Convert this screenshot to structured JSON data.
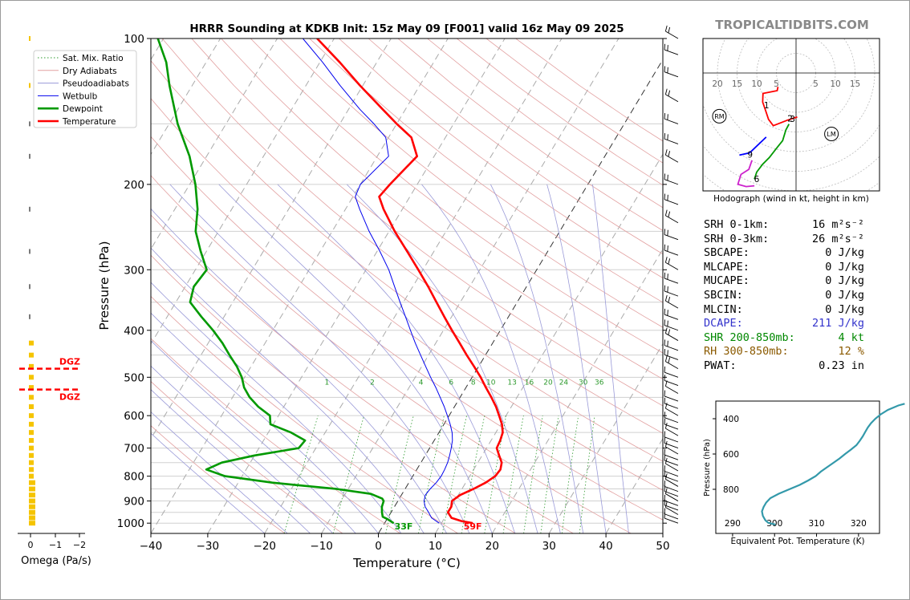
{
  "title": "HRRR Sounding at KDKB Init: 15z May 09 [F001] valid 16z May 09 2025",
  "watermark": "TROPICALTIDBITS.COM",
  "legend": [
    "Sat. Mix. Ratio",
    "Dry Adiabats",
    "Pseudoadiabats",
    "Wetbulb",
    "Dewpoint",
    "Temperature"
  ],
  "chart_data": [
    {
      "type": "line",
      "name": "skew-t",
      "xlabel": "Temperature (°C)",
      "ylabel": "Pressure (hPa)",
      "xlim": [
        -40,
        50
      ],
      "ylim": [
        1050,
        100
      ],
      "y_scale": "log",
      "x_ticks": [
        -40,
        -30,
        -20,
        -10,
        0,
        10,
        20,
        30,
        40,
        50
      ],
      "y_ticks": [
        100,
        200,
        300,
        400,
        500,
        600,
        700,
        800,
        900,
        1000
      ],
      "mixing_ratio_labels": [
        "1",
        "2",
        "4",
        "6",
        "8",
        "10",
        "13",
        "16",
        "20",
        "24",
        "30",
        "36"
      ],
      "surface_labels": {
        "dewpoint": "33F",
        "temperature": "59F"
      },
      "series": [
        {
          "name": "Temperature",
          "color": "#ff0000",
          "points": [
            [
              1000,
              15.5
            ],
            [
              990,
              13.3
            ],
            [
              975,
              11.2
            ],
            [
              950,
              10.0
            ],
            [
              925,
              10.0
            ],
            [
              900,
              9.5
            ],
            [
              875,
              10.3
            ],
            [
              850,
              12.0
            ],
            [
              825,
              13.5
            ],
            [
              800,
              14.5
            ],
            [
              775,
              14.7
            ],
            [
              750,
              14.2
            ],
            [
              725,
              13.0
            ],
            [
              700,
              11.8
            ],
            [
              675,
              11.6
            ],
            [
              650,
              11.2
            ],
            [
              625,
              10.2
            ],
            [
              600,
              8.8
            ],
            [
              575,
              7.3
            ],
            [
              550,
              5.5
            ],
            [
              525,
              3.5
            ],
            [
              500,
              1.5
            ],
            [
              475,
              -0.8
            ],
            [
              450,
              -3.3
            ],
            [
              425,
              -5.8
            ],
            [
              400,
              -8.5
            ],
            [
              375,
              -11.3
            ],
            [
              350,
              -14.2
            ],
            [
              325,
              -17.3
            ],
            [
              300,
              -20.8
            ],
            [
              275,
              -24.7
            ],
            [
              250,
              -29.0
            ],
            [
              225,
              -33.3
            ],
            [
              212,
              -35.4
            ],
            [
              200,
              -34.8
            ],
            [
              175,
              -33.0
            ],
            [
              160,
              -36.0
            ],
            [
              150,
              -40.0
            ],
            [
              140,
              -44.0
            ],
            [
              125,
              -50.5
            ],
            [
              112,
              -56.5
            ],
            [
              100,
              -63.0
            ]
          ]
        },
        {
          "name": "Dewpoint",
          "color": "#009900",
          "points": [
            [
              1000,
              1.6
            ],
            [
              980,
              0.0
            ],
            [
              970,
              -1.0
            ],
            [
              950,
              -1.6
            ],
            [
              925,
              -2.2
            ],
            [
              900,
              -2.5
            ],
            [
              890,
              -3.0
            ],
            [
              870,
              -5.5
            ],
            [
              850,
              -12.0
            ],
            [
              825,
              -24.0
            ],
            [
              800,
              -33.0
            ],
            [
              775,
              -37.0
            ],
            [
              750,
              -35.0
            ],
            [
              725,
              -30.0
            ],
            [
              700,
              -23.0
            ],
            [
              675,
              -22.7
            ],
            [
              650,
              -26.0
            ],
            [
              625,
              -30.5
            ],
            [
              600,
              -31.5
            ],
            [
              575,
              -34.5
            ],
            [
              550,
              -37.0
            ],
            [
              525,
              -39.0
            ],
            [
              500,
              -40.5
            ],
            [
              475,
              -42.5
            ],
            [
              450,
              -45.0
            ],
            [
              425,
              -47.5
            ],
            [
              400,
              -50.5
            ],
            [
              375,
              -54.0
            ],
            [
              350,
              -57.5
            ],
            [
              325,
              -58.5
            ],
            [
              300,
              -58.0
            ],
            [
              275,
              -61.0
            ],
            [
              250,
              -64.0
            ],
            [
              225,
              -66.0
            ],
            [
              200,
              -69.0
            ],
            [
              175,
              -73.0
            ],
            [
              150,
              -78.5
            ],
            [
              125,
              -84.0
            ],
            [
              112,
              -87.0
            ],
            [
              100,
              -91.0
            ]
          ]
        },
        {
          "name": "Wetbulb",
          "color": "#0000ee",
          "points": [
            [
              1000,
              9.6
            ],
            [
              975,
              7.7
            ],
            [
              950,
              6.6
            ],
            [
              925,
              5.4
            ],
            [
              900,
              4.6
            ],
            [
              875,
              4.2
            ],
            [
              850,
              4.4
            ],
            [
              825,
              4.8
            ],
            [
              800,
              5.0
            ],
            [
              775,
              4.9
            ],
            [
              750,
              4.7
            ],
            [
              725,
              4.3
            ],
            [
              700,
              3.8
            ],
            [
              675,
              3.2
            ],
            [
              650,
              2.3
            ],
            [
              625,
              1.1
            ],
            [
              600,
              -0.3
            ],
            [
              575,
              -1.8
            ],
            [
              550,
              -3.5
            ],
            [
              525,
              -5.3
            ],
            [
              500,
              -7.3
            ],
            [
              475,
              -9.3
            ],
            [
              450,
              -11.4
            ],
            [
              425,
              -13.6
            ],
            [
              400,
              -15.8
            ],
            [
              375,
              -18.1
            ],
            [
              350,
              -20.6
            ],
            [
              325,
              -23.2
            ],
            [
              300,
              -26.0
            ],
            [
              275,
              -29.5
            ],
            [
              250,
              -33.5
            ],
            [
              225,
              -37.5
            ],
            [
              212,
              -39.6
            ],
            [
              200,
              -40.0
            ],
            [
              175,
              -38.0
            ],
            [
              160,
              -40.5
            ],
            [
              150,
              -44.0
            ],
            [
              140,
              -48.0
            ],
            [
              125,
              -54.0
            ],
            [
              112,
              -59.5
            ],
            [
              100,
              -65.5
            ]
          ]
        }
      ]
    },
    {
      "type": "bar",
      "name": "omega",
      "xlabel": "Omega (Pa/s)",
      "x_ticks": [
        "0",
        "−1",
        "−2"
      ],
      "dgz_labels": [
        "DGZ",
        "DGZ"
      ],
      "dgz_pressures": [
        480,
        530
      ]
    },
    {
      "type": "line",
      "name": "hodograph",
      "xlabel": "Hodograph (wind in kt, height in km)",
      "ring_labels": [
        "20",
        "15",
        "10",
        "5",
        "5",
        "10",
        "15"
      ],
      "height_labels": [
        "1",
        "2",
        "3",
        "9",
        "6"
      ],
      "storm_motion_labels": [
        "RM",
        "LM"
      ]
    },
    {
      "type": "line",
      "name": "theta-e",
      "xlabel": "Equivalent Pot. Temperature (K)",
      "ylabel": "Pressure (hPa)",
      "x_ticks": [
        290,
        300,
        310,
        320
      ],
      "y_ticks": [
        400,
        600,
        800
      ],
      "series": [
        {
          "name": "Theta-e",
          "color": "#3399aa",
          "points": [
            [
              1000,
              300.2
            ],
            [
              990,
              298.5
            ],
            [
              975,
              297.8
            ],
            [
              950,
              297.2
            ],
            [
              925,
              297.0
            ],
            [
              900,
              297.4
            ],
            [
              875,
              298.0
            ],
            [
              850,
              299.0
            ],
            [
              825,
              301.0
            ],
            [
              800,
              303.5
            ],
            [
              775,
              306.0
            ],
            [
              750,
              308.0
            ],
            [
              725,
              309.8
            ],
            [
              700,
              311.0
            ],
            [
              675,
              312.5
            ],
            [
              650,
              314.0
            ],
            [
              625,
              315.5
            ],
            [
              600,
              316.8
            ],
            [
              575,
              318.2
            ],
            [
              550,
              319.5
            ],
            [
              525,
              320.3
            ],
            [
              500,
              321.0
            ],
            [
              475,
              321.6
            ],
            [
              450,
              322.2
            ],
            [
              425,
              323.0
            ],
            [
              400,
              324.0
            ],
            [
              375,
              325.3
            ],
            [
              350,
              327.0
            ],
            [
              325,
              329.5
            ],
            [
              315,
              331.0
            ]
          ]
        }
      ]
    }
  ],
  "stats": [
    {
      "label": "SRH 0-1km:",
      "value": "16 m²s⁻²",
      "color": "#000000"
    },
    {
      "label": "SRH 0-3km:",
      "value": "26 m²s⁻²",
      "color": "#000000"
    },
    {
      "label": "SBCAPE:",
      "value": "0 J/kg",
      "color": "#000000"
    },
    {
      "label": "MLCAPE:",
      "value": "0 J/kg",
      "color": "#000000"
    },
    {
      "label": "MUCAPE:",
      "value": "0 J/kg",
      "color": "#000000"
    },
    {
      "label": "SBCIN:",
      "value": "0 J/kg",
      "color": "#000000"
    },
    {
      "label": "MLCIN:",
      "value": "0 J/kg",
      "color": "#000000"
    },
    {
      "label": "DCAPE:",
      "value": "211 J/kg",
      "color": "#3333cc"
    },
    {
      "label": "SHR 200-850mb:",
      "value": "4 kt",
      "color": "#008800"
    },
    {
      "label": "RH 300-850mb:",
      "value": "12 %",
      "color": "#8b5a00"
    },
    {
      "label": "PWAT:",
      "value": "0.23 in",
      "color": "#000000"
    }
  ]
}
